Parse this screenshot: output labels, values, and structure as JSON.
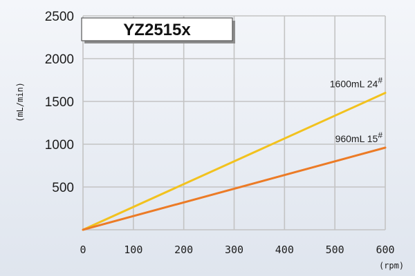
{
  "chart_data": {
    "type": "line",
    "title": "YZ2515x",
    "ylabel": "(mL/min)",
    "xlabel": "(rpm)",
    "xlim": [
      0,
      600
    ],
    "ylim": [
      0,
      2500
    ],
    "x_ticks": [
      "0",
      "100",
      "200",
      "300",
      "400",
      "500",
      "600"
    ],
    "y_ticks": [
      "500",
      "1000",
      "1500",
      "2000",
      "2500"
    ],
    "grid": true,
    "series": [
      {
        "name": "1600mL 24#",
        "label_main": "1600mL 24",
        "label_sup": "#",
        "color": "#f2c21e",
        "x": [
          0,
          600
        ],
        "y": [
          0,
          1600
        ]
      },
      {
        "name": "960mL 15#",
        "label_main": "960mL 15",
        "label_sup": "#",
        "color": "#ec7b26",
        "x": [
          0,
          600
        ],
        "y": [
          0,
          960
        ]
      }
    ]
  }
}
